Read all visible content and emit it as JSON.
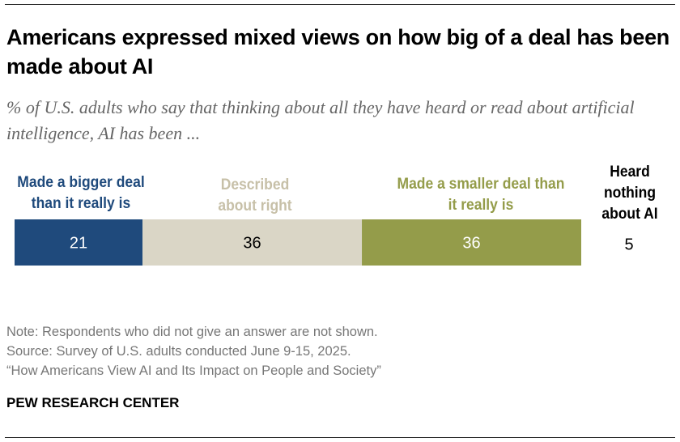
{
  "title": "Americans expressed mixed views on how big of a deal has been made about AI",
  "subtitle": "% of U.S. adults who say that thinking about all they have heard or read about artificial intelligence, AI has been ...",
  "chart_data": {
    "type": "bar",
    "orientation": "horizontal-stacked",
    "categories": [
      "Made a bigger deal than it really is",
      "Described about right",
      "Made a smaller deal than it really is"
    ],
    "values": [
      21,
      36,
      36
    ],
    "colors": [
      "#1f4a7c",
      "#dad6c6",
      "#949c4a"
    ],
    "label_colors": [
      "#1f4a7c",
      "#c7c0a8",
      "#949c4a"
    ],
    "value_text_colors": [
      "#ffffff",
      "#000000",
      "#ffffff"
    ],
    "extra": {
      "label": "Heard nothing about AI",
      "value": 5
    },
    "grid": false
  },
  "notes": [
    "Note: Respondents who did not give an answer are not shown.",
    "Source: Survey of U.S. adults conducted June 9-15, 2025.",
    "“How Americans View AI and Its Impact on People and Society”"
  ],
  "brand": "PEW RESEARCH CENTER"
}
